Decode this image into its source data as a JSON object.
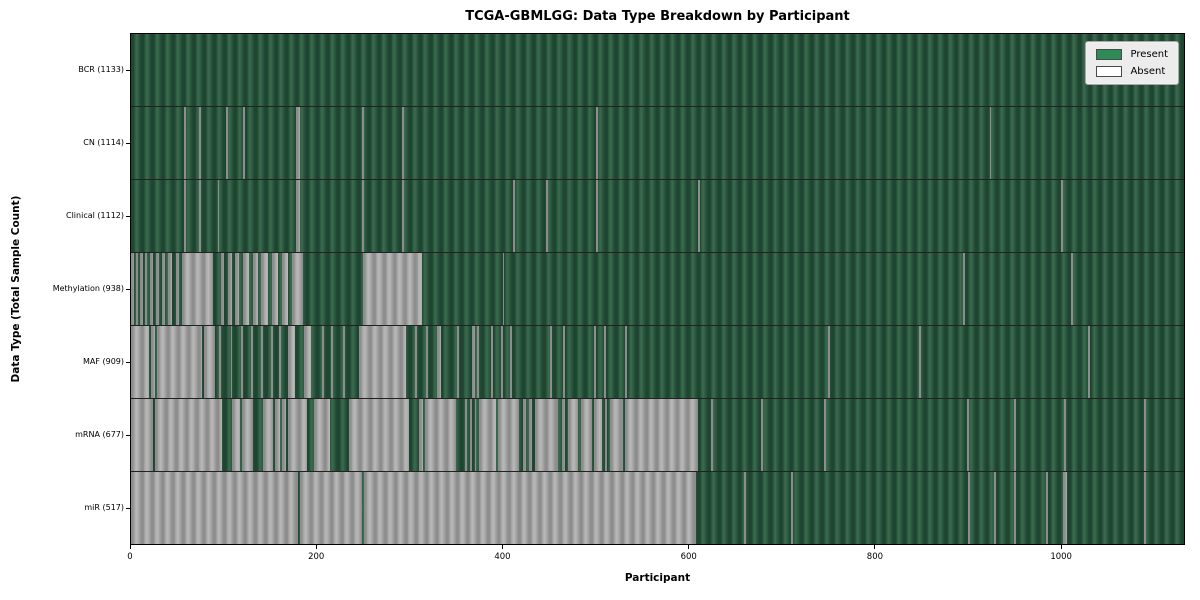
{
  "chart_data": {
    "type": "heatmap",
    "title": "TCGA-GBMLGG: Data Type Breakdown by Participant",
    "xlabel": "Participant",
    "ylabel": "Data Type (Total Sample Count)",
    "x_ticks": [
      0,
      200,
      400,
      600,
      800,
      1000
    ],
    "x_max": 1133,
    "grid": false,
    "legend_position": "upper right",
    "legend": [
      {
        "label": "Present",
        "color": "#2e8b57"
      },
      {
        "label": "Absent",
        "color": "#ffffff"
      }
    ],
    "colors": {
      "present_fill": "#2e5c42",
      "absent_fill": "#a8a8a8",
      "plot_border": "#000000",
      "legend_background": "#ececec"
    },
    "rows": [
      {
        "label": "BCR",
        "total": 1133,
        "absent_segments": []
      },
      {
        "label": "CN",
        "total": 1114,
        "absent_segments": [
          [
            57,
            59
          ],
          [
            73,
            75
          ],
          [
            102,
            104
          ],
          [
            120,
            122
          ],
          [
            177,
            182
          ],
          [
            248,
            250
          ],
          [
            291,
            293
          ],
          [
            499,
            501
          ],
          [
            922,
            924
          ]
        ]
      },
      {
        "label": "Clinical",
        "total": 1112,
        "absent_segments": [
          [
            57,
            59
          ],
          [
            73,
            75
          ],
          [
            93,
            95
          ],
          [
            177,
            181
          ],
          [
            248,
            250
          ],
          [
            291,
            293
          ],
          [
            410,
            412
          ],
          [
            446,
            448
          ],
          [
            499,
            501
          ],
          [
            609,
            611
          ],
          [
            999,
            1001
          ]
        ]
      },
      {
        "label": "Methylation",
        "total": 938,
        "absent_segments": [
          [
            0,
            3
          ],
          [
            5,
            8
          ],
          [
            10,
            13
          ],
          [
            15,
            17
          ],
          [
            20,
            24
          ],
          [
            27,
            30
          ],
          [
            33,
            36
          ],
          [
            40,
            44
          ],
          [
            48,
            52
          ],
          [
            55,
            88
          ],
          [
            97,
            100
          ],
          [
            104,
            108
          ],
          [
            112,
            116
          ],
          [
            120,
            127
          ],
          [
            131,
            136
          ],
          [
            140,
            147
          ],
          [
            151,
            158
          ],
          [
            162,
            169
          ],
          [
            173,
            185
          ],
          [
            249,
            313
          ],
          [
            399,
            400
          ],
          [
            894,
            896
          ],
          [
            1010,
            1012
          ]
        ]
      },
      {
        "label": "MAF",
        "total": 909,
        "absent_segments": [
          [
            0,
            19
          ],
          [
            21,
            26
          ],
          [
            28,
            76
          ],
          [
            78,
            90
          ],
          [
            95,
            97
          ],
          [
            107,
            109
          ],
          [
            118,
            120
          ],
          [
            129,
            131
          ],
          [
            140,
            142
          ],
          [
            150,
            152
          ],
          [
            159,
            161
          ],
          [
            169,
            176
          ],
          [
            186,
            193
          ],
          [
            205,
            207
          ],
          [
            215,
            217
          ],
          [
            228,
            230
          ],
          [
            245,
            295
          ],
          [
            305,
            307
          ],
          [
            317,
            319
          ],
          [
            329,
            333
          ],
          [
            350,
            352
          ],
          [
            366,
            369
          ],
          [
            372,
            374
          ],
          [
            387,
            389
          ],
          [
            397,
            399
          ],
          [
            407,
            409
          ],
          [
            450,
            452
          ],
          [
            464,
            466
          ],
          [
            497,
            499
          ],
          [
            508,
            510
          ],
          [
            531,
            533
          ],
          [
            749,
            751
          ],
          [
            846,
            848
          ],
          [
            1028,
            1030
          ]
        ]
      },
      {
        "label": "mRNA",
        "total": 677,
        "absent_segments": [
          [
            0,
            24
          ],
          [
            26,
            98
          ],
          [
            108,
            117
          ],
          [
            119,
            131
          ],
          [
            142,
            153
          ],
          [
            155,
            160
          ],
          [
            162,
            167
          ],
          [
            169,
            189
          ],
          [
            196,
            214
          ],
          [
            234,
            299
          ],
          [
            309,
            314
          ],
          [
            316,
            349
          ],
          [
            359,
            361
          ],
          [
            364,
            366
          ],
          [
            369,
            371
          ],
          [
            374,
            392
          ],
          [
            394,
            417
          ],
          [
            421,
            424
          ],
          [
            427,
            431
          ],
          [
            434,
            459
          ],
          [
            463,
            466
          ],
          [
            469,
            480
          ],
          [
            483,
            495
          ],
          [
            497,
            506
          ],
          [
            509,
            511
          ],
          [
            514,
            528
          ],
          [
            530,
            609
          ],
          [
            623,
            625
          ],
          [
            677,
            679
          ],
          [
            744,
            746
          ],
          [
            898,
            900
          ],
          [
            948,
            950
          ],
          [
            1002,
            1004
          ],
          [
            1088,
            1090
          ]
        ]
      },
      {
        "label": "miR",
        "total": 517,
        "absent_segments": [
          [
            0,
            179
          ],
          [
            181,
            248
          ],
          [
            250,
            607
          ],
          [
            658,
            660
          ],
          [
            709,
            711
          ],
          [
            899,
            901
          ],
          [
            927,
            929
          ],
          [
            948,
            950
          ],
          [
            983,
            985
          ],
          [
            1001,
            1005
          ],
          [
            1088,
            1090
          ]
        ]
      }
    ]
  }
}
